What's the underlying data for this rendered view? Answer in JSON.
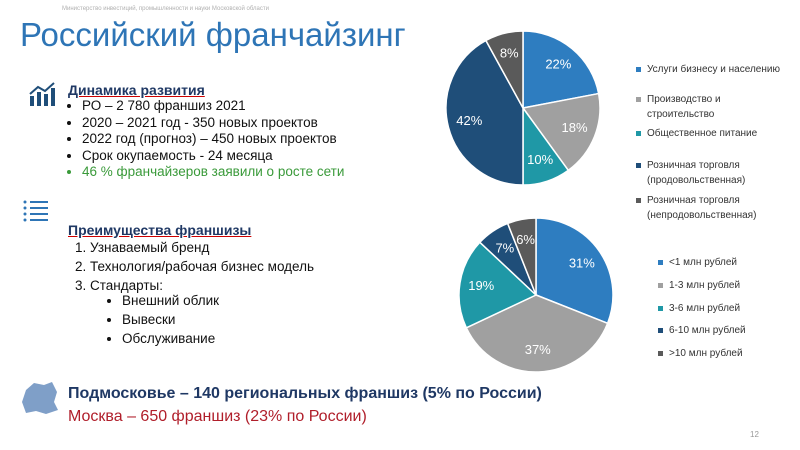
{
  "header": {
    "ministry": "Министерство инвестиций, промышленности и науки Московской области",
    "title": "Российский франчайзинг"
  },
  "development": {
    "heading": "Динамика развития",
    "items": [
      "РО – 2 780 франшиз 2021",
      "2020 – 2021 год  - 350 новых проектов",
      "2022 год (прогноз) – 450 новых проектов",
      "Срок окупаемость - 24 месяца",
      "46 % франчайзеров заявили о росте сети"
    ]
  },
  "advantages": {
    "heading": "Преимущества франшизы",
    "items": [
      "Узнаваемый бренд",
      "Технология/рабочая бизнес модель",
      "Стандарты:"
    ],
    "subitems": [
      "Внешний облик",
      "Вывески",
      "Обслуживание"
    ]
  },
  "footer": {
    "region": "Подмосковье – 140 региональных франшиз (5% по России)",
    "moscow": "Москва – 650 франшиз (23% по России)",
    "page": "12"
  },
  "chart_data": [
    {
      "type": "pie",
      "categories": [
        "Услуги бизнесу и населению",
        "Производство и строительство",
        "Общественное питание",
        "Розничная торговля (продовольственная)",
        "Розничная торговля (непродовольственная)"
      ],
      "values": [
        22,
        18,
        10,
        42,
        8
      ],
      "value_labels": [
        "22%",
        "18%",
        "10%",
        "42%",
        "8%"
      ],
      "colors": [
        "#2e7dc0",
        "#a0a0a0",
        "#1f98a6",
        "#1f4e79",
        "#5a5a5a"
      ]
    },
    {
      "type": "pie",
      "categories": [
        "<1 млн рублей",
        "1-3 млн рублей",
        "3-6 млн рублей",
        "6-10 млн рублей",
        ">10 млн рублей"
      ],
      "values": [
        31,
        37,
        19,
        7,
        6
      ],
      "value_labels": [
        "31%",
        "37%",
        "19%",
        "7%",
        "6%"
      ],
      "colors": [
        "#2e7dc0",
        "#a0a0a0",
        "#1f98a6",
        "#1f4e79",
        "#5a5a5a"
      ]
    }
  ]
}
